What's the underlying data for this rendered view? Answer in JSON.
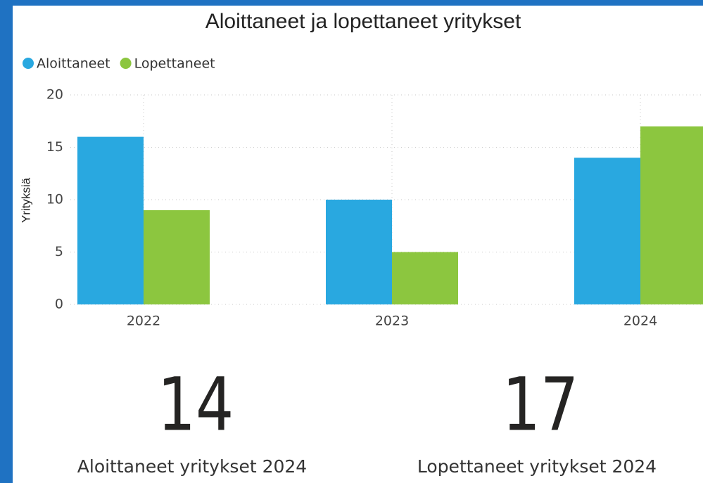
{
  "chart_data": {
    "type": "bar",
    "title": "Aloittaneet ja lopettaneet yritykset",
    "y_label": "Yrityksiä",
    "categories": [
      "2022",
      "2023",
      "2024"
    ],
    "series": [
      {
        "name": "Aloittaneet",
        "color": "#29a8e0",
        "values": [
          16,
          10,
          14
        ]
      },
      {
        "name": "Lopettaneet",
        "color": "#8cc63f",
        "values": [
          9,
          5,
          17
        ]
      }
    ],
    "ylim": [
      0,
      20
    ],
    "yticks": [
      0,
      5,
      10,
      15,
      20
    ],
    "grid": true,
    "legend": "top-left"
  },
  "cards": [
    {
      "value": 14,
      "label": "Aloittaneet yritykset 2024"
    },
    {
      "value": 17,
      "label": "Lopettaneet yritykset 2024"
    }
  ]
}
